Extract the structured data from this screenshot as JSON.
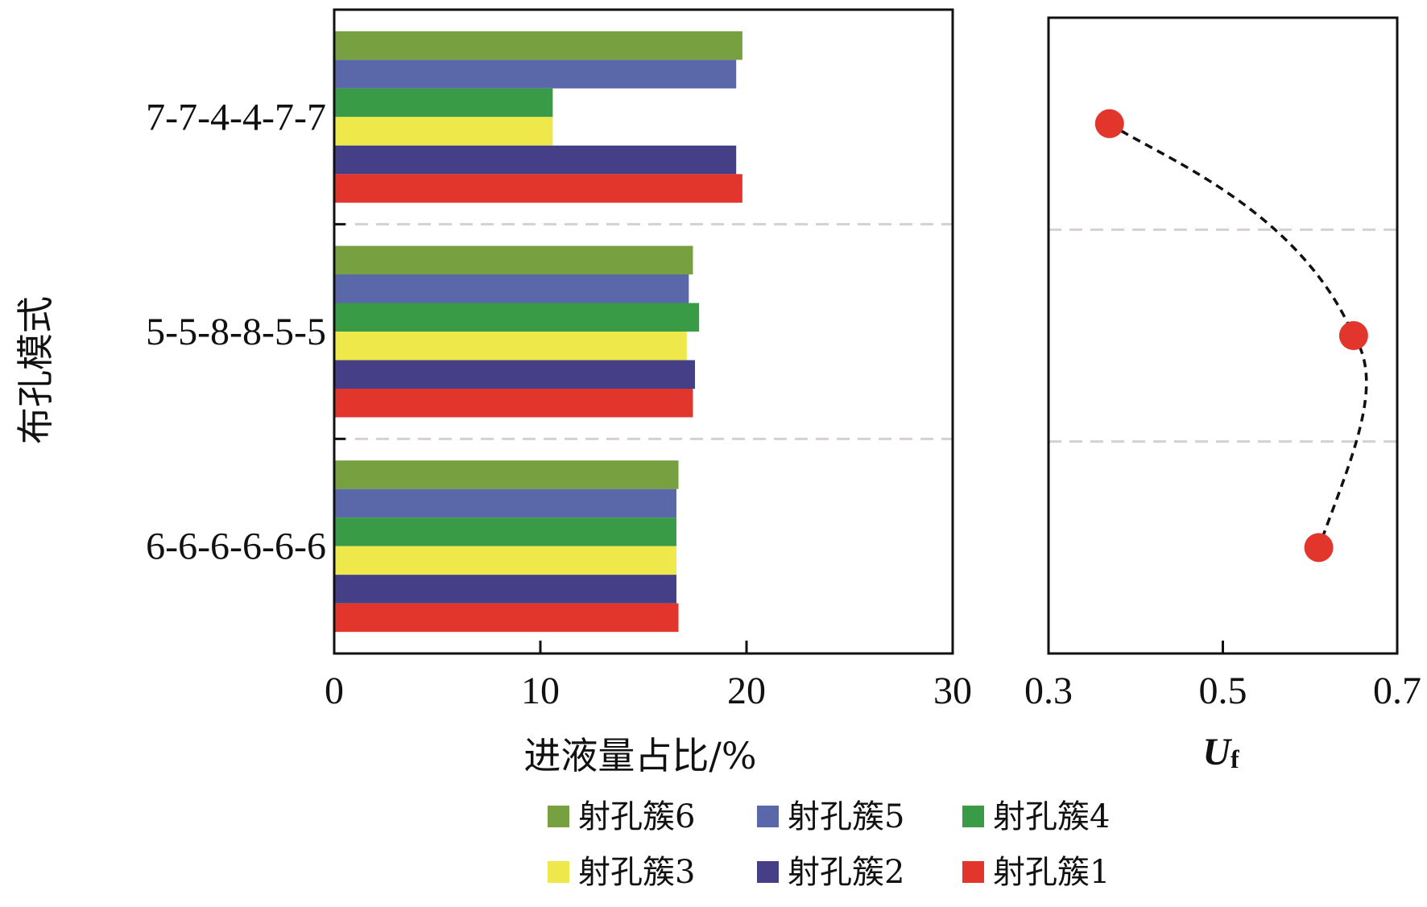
{
  "chart_data": [
    {
      "type": "bar",
      "orientation": "horizontal",
      "categories": [
        "7-7-4-4-7-7",
        "5-5-8-8-5-5",
        "6-6-6-6-6-6"
      ],
      "xlabel": "进液量占比/%",
      "ylabel": "布孔模式",
      "xlim": [
        0,
        30
      ],
      "xticks": [
        "0",
        "10",
        "20",
        "30"
      ],
      "series": [
        {
          "name": "射孔簇6",
          "color": "#77a040",
          "values": [
            19.8,
            17.4,
            16.7
          ]
        },
        {
          "name": "射孔簇5",
          "color": "#5a68aa",
          "values": [
            19.5,
            17.2,
            16.6
          ]
        },
        {
          "name": "射孔簇4",
          "color": "#3a9b46",
          "values": [
            10.6,
            17.7,
            16.6
          ]
        },
        {
          "name": "射孔簇3",
          "color": "#efe84a",
          "values": [
            10.6,
            17.1,
            16.6
          ]
        },
        {
          "name": "射孔簇2",
          "color": "#443f86",
          "values": [
            19.5,
            17.5,
            16.6
          ]
        },
        {
          "name": "射孔簇1",
          "color": "#e2352b",
          "values": [
            19.8,
            17.4,
            16.7
          ]
        }
      ],
      "legend_position": "bottom",
      "grid": "dashed separators between categories"
    },
    {
      "type": "scatter",
      "categories": [
        "7-7-4-4-7-7",
        "5-5-8-8-5-5",
        "6-6-6-6-6-6"
      ],
      "x": [
        0.37,
        0.65,
        0.61
      ],
      "xlabel": "U",
      "xlabel_sub": "f",
      "xlim": [
        0.3,
        0.7
      ],
      "xticks": [
        "0.3",
        "0.5",
        "0.7"
      ],
      "marker_color": "#e2352b",
      "line_style": "dashed smooth curve"
    }
  ]
}
